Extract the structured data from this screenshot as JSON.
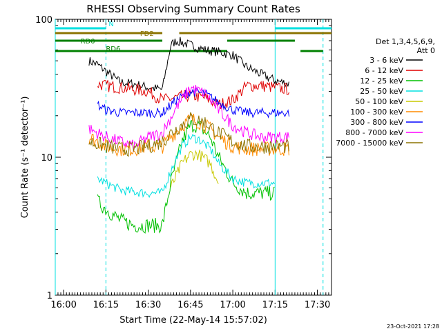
{
  "chart_data": {
    "type": "line",
    "title": "RHESSI Observing Summary Count Rates",
    "xlabel": "Start Time (22-May-14 15:57:02)",
    "ylabel": "Count Rate (s⁻¹ detector⁻¹)",
    "yscale": "log",
    "ylim": [
      1,
      100
    ],
    "xlim": [
      "15:57:02",
      "17:35:00"
    ],
    "xticks": [
      "16:00",
      "16:15",
      "16:30",
      "16:45",
      "17:00",
      "17:15",
      "17:30"
    ],
    "yticks": [
      "1",
      "10",
      "100"
    ],
    "legend": {
      "placement": "right",
      "header": [
        "Det 1,3,4,5,6,9,",
        "Att 0"
      ]
    },
    "series": [
      {
        "name": "3 - 6 keV",
        "color": "#000000",
        "x": [
          "16:09",
          "16:12",
          "16:15",
          "16:20",
          "16:25",
          "16:30",
          "16:35",
          "16:38",
          "16:40",
          "16:45",
          "16:50",
          "16:55",
          "17:00",
          "17:05",
          "17:10",
          "17:15",
          "17:20"
        ],
        "y": [
          50,
          47,
          42,
          35,
          34,
          32,
          31,
          65,
          70,
          65,
          60,
          58,
          55,
          45,
          40,
          36,
          34
        ]
      },
      {
        "name": "6 - 12 keV",
        "color": "#e00000",
        "x": [
          "16:12",
          "16:15",
          "16:20",
          "16:25",
          "16:30",
          "16:35",
          "16:40",
          "16:45",
          "16:50",
          "16:55",
          "17:00",
          "17:05",
          "17:10",
          "17:15",
          "17:20"
        ],
        "y": [
          34,
          33,
          32,
          31,
          30,
          26,
          27,
          28,
          27,
          24,
          26,
          33,
          33,
          32,
          31
        ]
      },
      {
        "name": "12 - 25 keV",
        "color": "#00c000",
        "x": [
          "16:12",
          "16:15",
          "16:20",
          "16:25",
          "16:30",
          "16:35",
          "16:38",
          "16:42",
          "16:45",
          "16:48",
          "16:52",
          "16:55",
          "17:00",
          "17:05",
          "17:10",
          "17:15"
        ],
        "y": [
          4.8,
          4.2,
          3.5,
          3.2,
          3.2,
          3.2,
          6.5,
          13,
          17,
          17,
          14,
          10,
          6.5,
          5.5,
          5.5,
          5.5
        ]
      },
      {
        "name": "25 - 50 keV",
        "color": "#00e0e0",
        "x": [
          "16:12",
          "16:15",
          "16:20",
          "16:25",
          "16:30",
          "16:35",
          "16:38",
          "16:42",
          "16:45",
          "16:48",
          "16:52",
          "16:55",
          "17:00",
          "17:05",
          "17:10",
          "17:15"
        ],
        "y": [
          7,
          6.5,
          5.8,
          5.6,
          5.5,
          5.5,
          8,
          12,
          14,
          13.5,
          11.5,
          9,
          7,
          6.5,
          6.5,
          6.5
        ]
      },
      {
        "name": "50 - 100 keV",
        "color": "#c8c800",
        "x": [
          "16:38",
          "16:42",
          "16:45",
          "16:48",
          "16:52",
          "16:55"
        ],
        "y": [
          6,
          9,
          10.5,
          10.5,
          9,
          6.5
        ]
      },
      {
        "name": "100 - 300 keV",
        "color": "#ff8c00",
        "x": [
          "16:09",
          "16:12",
          "16:15",
          "16:20",
          "16:25",
          "16:30",
          "16:35",
          "16:38",
          "16:42",
          "16:45",
          "16:48",
          "16:52",
          "16:55",
          "17:00",
          "17:05",
          "17:10",
          "17:15",
          "17:20"
        ],
        "y": [
          14,
          13,
          12,
          11.5,
          11.5,
          12,
          12,
          14,
          17,
          19,
          18,
          16,
          14,
          12,
          11.5,
          11.5,
          11.5,
          11.5
        ]
      },
      {
        "name": "300 - 800 keV",
        "color": "#0000ff",
        "x": [
          "16:12",
          "16:15",
          "16:20",
          "16:25",
          "16:30",
          "16:35",
          "16:40",
          "16:45",
          "16:50",
          "16:55",
          "17:00",
          "17:05",
          "17:10",
          "17:15",
          "17:20"
        ],
        "y": [
          24,
          22,
          21,
          21,
          21,
          21,
          26,
          30,
          29,
          25,
          22,
          21,
          21,
          21,
          21
        ]
      },
      {
        "name": "800 - 7000 keV",
        "color": "#ff00ff",
        "x": [
          "16:09",
          "16:12",
          "16:15",
          "16:20",
          "16:25",
          "16:30",
          "16:35",
          "16:40",
          "16:45",
          "16:50",
          "16:55",
          "17:00",
          "17:05",
          "17:10",
          "17:15",
          "17:20"
        ],
        "y": [
          16,
          15,
          14,
          13,
          12,
          14,
          15,
          23,
          32,
          29,
          22,
          17,
          15,
          14,
          14,
          14
        ]
      },
      {
        "name": "7000 - 15000 keV",
        "color": "#8b7300",
        "x": [
          "16:09",
          "16:12",
          "16:15",
          "16:20",
          "16:25",
          "16:30",
          "16:35",
          "16:38",
          "16:45",
          "16:50",
          "16:55",
          "17:00",
          "17:05",
          "17:10",
          "17:15",
          "17:20"
        ],
        "y": [
          13,
          12.5,
          12,
          11.5,
          11.5,
          12,
          13,
          15,
          19,
          18,
          15,
          13,
          12,
          12,
          12,
          12
        ]
      }
    ],
    "flag_bars": [
      {
        "label": "N",
        "color": "#00e0e0",
        "segments": [
          [
            "15:57:02",
            "16:15"
          ],
          [
            "17:15",
            "17:35"
          ]
        ]
      },
      {
        "label": "FD2",
        "color": "#8b7300",
        "segments": [
          [
            "15:57:02",
            "16:35"
          ],
          [
            "16:41",
            "17:35"
          ]
        ]
      },
      {
        "label": "RD0",
        "color": "#008000",
        "segments": [
          [
            "15:57:02",
            "16:35"
          ],
          [
            "16:58",
            "17:22"
          ]
        ]
      },
      {
        "label": "RD6",
        "color": "#008000",
        "segments": [
          [
            "15:57:02",
            "16:35"
          ],
          [
            "16:35",
            "16:58"
          ],
          [
            "17:24",
            "17:32"
          ]
        ]
      }
    ],
    "vertical_markers": [
      {
        "time": "15:57:02",
        "style": "solid",
        "color": "#00e0e0"
      },
      {
        "time": "16:15",
        "style": "dashed",
        "color": "#00e0e0"
      },
      {
        "time": "17:15",
        "style": "solid",
        "color": "#00e0e0"
      },
      {
        "time": "17:32",
        "style": "dashed",
        "color": "#00e0e0"
      }
    ]
  },
  "footer": {
    "date_stamp": "23-Oct-2021 17:28"
  }
}
